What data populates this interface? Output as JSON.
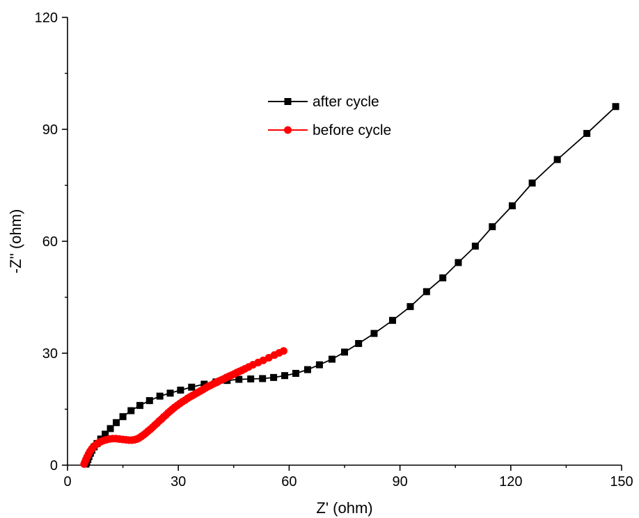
{
  "chart_data": {
    "type": "scatter",
    "title": "",
    "xlabel": "Z' (ohm)",
    "ylabel": "-Z'' (ohm)",
    "xlim": [
      0,
      150
    ],
    "ylim": [
      0,
      120
    ],
    "xticks": [
      0,
      30,
      60,
      90,
      120,
      150
    ],
    "yticks": [
      0,
      30,
      60,
      90,
      120
    ],
    "grid": false,
    "legend_position": "top-center",
    "series": [
      {
        "name": "after cycle",
        "color": "#000000",
        "marker": "square",
        "x": [
          5.0,
          5.2,
          5.5,
          5.8,
          6.2,
          6.6,
          7.2,
          8.0,
          9.0,
          10.2,
          11.6,
          13.2,
          15.0,
          17.2,
          19.6,
          22.2,
          25.0,
          27.8,
          30.6,
          33.6,
          37.0,
          40.2,
          43.2,
          46.4,
          49.6,
          52.8,
          55.8,
          58.8,
          61.8,
          65.0,
          68.2,
          71.6,
          75.0,
          78.8,
          83.0,
          88.0,
          92.8,
          97.2,
          101.6,
          105.8,
          110.4,
          115.0,
          120.4,
          125.8,
          132.6,
          140.6,
          148.4
        ],
        "y": [
          0.3,
          0.8,
          1.5,
          2.3,
          3.2,
          4.0,
          4.9,
          5.8,
          7.0,
          8.3,
          9.8,
          11.4,
          13.0,
          14.6,
          16.0,
          17.3,
          18.5,
          19.3,
          20.1,
          20.9,
          21.7,
          22.3,
          22.7,
          23.0,
          23.1,
          23.2,
          23.5,
          24.0,
          24.6,
          25.6,
          26.9,
          28.4,
          30.3,
          32.6,
          35.3,
          38.8,
          42.5,
          46.5,
          50.2,
          54.3,
          58.7,
          63.9,
          69.5,
          75.6,
          81.9,
          88.9,
          96.1
        ]
      },
      {
        "name": "before cycle",
        "color": "#ff0000",
        "marker": "circle",
        "x": [
          4.5,
          4.7,
          5.0,
          5.3,
          5.7,
          6.1,
          6.6,
          7.1,
          7.7,
          8.3,
          9.0,
          9.7,
          10.5,
          11.3,
          12.2,
          13.1,
          14.0,
          14.9,
          15.8,
          16.6,
          17.4,
          18.1,
          18.8,
          19.4,
          20.0,
          20.6,
          21.2,
          21.8,
          22.4,
          23.0,
          23.6,
          24.2,
          24.8,
          25.4,
          26.0,
          26.6,
          27.2,
          27.8,
          28.4,
          29.0,
          29.7,
          30.4,
          31.1,
          31.8,
          32.5,
          33.2,
          33.9,
          34.6,
          35.3,
          36.0,
          36.7,
          37.4,
          38.1,
          38.8,
          39.5,
          40.2,
          40.9,
          41.6,
          42.3,
          43.0,
          43.7,
          44.4,
          45.1,
          45.8,
          46.5,
          47.2,
          48.0,
          49.0,
          50.2,
          51.6,
          53.0,
          54.5,
          56.0,
          57.3,
          58.5
        ],
        "y": [
          0.3,
          0.8,
          1.5,
          2.2,
          3.0,
          3.7,
          4.4,
          5.0,
          5.5,
          5.9,
          6.3,
          6.6,
          6.8,
          7.0,
          7.1,
          7.1,
          7.0,
          6.9,
          6.8,
          6.7,
          6.7,
          6.8,
          7.0,
          7.3,
          7.7,
          8.1,
          8.6,
          9.1,
          9.6,
          10.1,
          10.7,
          11.2,
          11.8,
          12.3,
          12.9,
          13.4,
          14.0,
          14.5,
          15.0,
          15.5,
          16.0,
          16.5,
          17.0,
          17.4,
          17.9,
          18.3,
          18.7,
          19.1,
          19.5,
          19.9,
          20.3,
          20.7,
          21.1,
          21.4,
          21.8,
          22.1,
          22.5,
          22.8,
          23.1,
          23.5,
          23.8,
          24.1,
          24.4,
          24.8,
          25.1,
          25.4,
          25.8,
          26.3,
          26.9,
          27.5,
          28.1,
          28.8,
          29.5,
          30.1,
          30.6
        ]
      }
    ]
  }
}
